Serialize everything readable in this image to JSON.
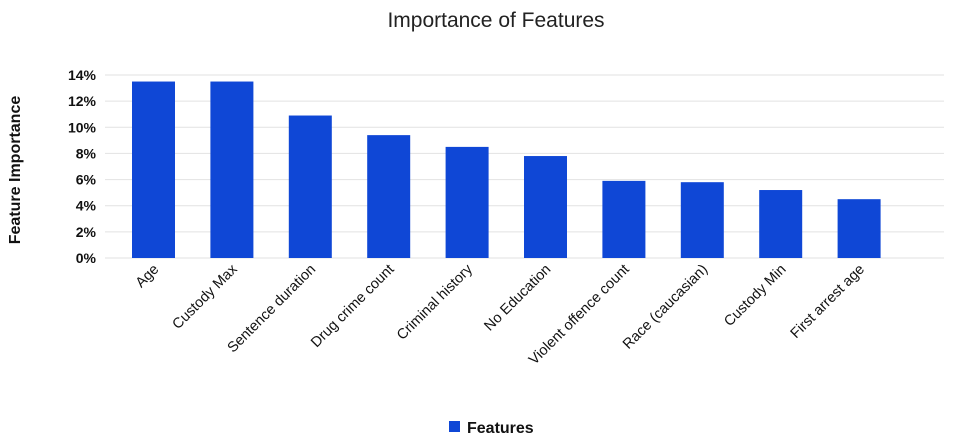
{
  "chart_data": {
    "type": "bar",
    "title": "Importance of Features",
    "xlabel": "",
    "ylabel": "Feature Importance",
    "categories": [
      "Age",
      "Custody Max",
      "Sentence duration",
      "Drug crime count",
      "Criminal history",
      "No Education",
      "Violent offence count",
      "Race (caucasian)",
      "Custody Min",
      "First arrest age"
    ],
    "series": [
      {
        "name": "Features",
        "color": "#0f47d6",
        "values": [
          13.5,
          13.5,
          10.9,
          9.4,
          8.5,
          7.8,
          5.9,
          5.8,
          5.2,
          4.5
        ]
      }
    ],
    "ylim": [
      0,
      14
    ],
    "yticks": [
      0,
      2,
      4,
      6,
      8,
      10,
      12,
      14
    ],
    "ytick_format": "%",
    "grid": true,
    "legend_position": "bottom"
  }
}
